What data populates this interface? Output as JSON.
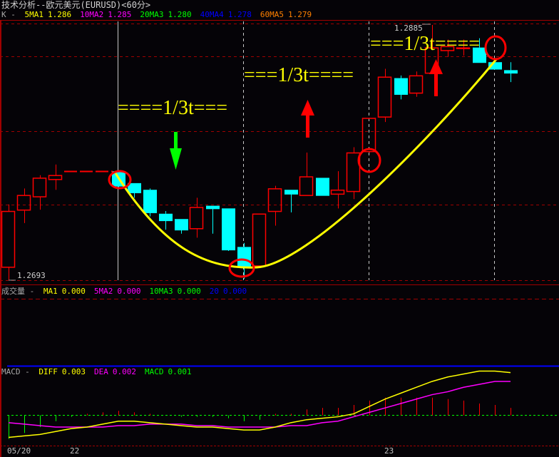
{
  "window": {
    "title": "技术分析--欧元美元(EURUSD)<60分>"
  },
  "price_panel": {
    "label": "K -",
    "indicators": [
      {
        "name": "5MA1",
        "value": "1.286",
        "color": "#ffff00"
      },
      {
        "name": "10MA2",
        "value": "1.285",
        "color": "#ff00ff"
      },
      {
        "name": "20MA3",
        "value": "1.280",
        "color": "#00ff00"
      },
      {
        "name": "40MA4",
        "value": "1.278",
        "color": "#0000ff"
      },
      {
        "name": "60MA5",
        "value": "1.279",
        "color": "#ff8000"
      }
    ],
    "high_label": "1.2885",
    "low_label": "1.2693",
    "annotations": [
      "====1/3t===",
      "===1/3t====",
      "===1/3t===="
    ]
  },
  "volume_panel": {
    "label": "成交量 -",
    "indicators": [
      {
        "name": "MA1",
        "value": "0.000",
        "color": "#ffff00"
      },
      {
        "name": "5MA2",
        "value": "0.000",
        "color": "#ff00ff"
      },
      {
        "name": "10MA3",
        "value": "0.000",
        "color": "#00ff00"
      },
      {
        "name": "20",
        "value": "0.000",
        "color": "#0000ff"
      }
    ]
  },
  "macd_panel": {
    "label": "MACD -",
    "indicators": [
      {
        "name": "DIFF",
        "value": "0.003",
        "color": "#ffff00"
      },
      {
        "name": "DEA",
        "value": "0.002",
        "color": "#ff00ff"
      },
      {
        "name": "MACD",
        "value": "0.001",
        "color": "#00ff00"
      }
    ]
  },
  "date_axis": [
    "05/20",
    "22",
    "23"
  ],
  "colors": {
    "up": "#ff0000",
    "down": "#00ffff",
    "grid": "#a00000",
    "curve": "#ffff00",
    "arrow_down": "#00ff00",
    "arrow_up": "#ff0000"
  },
  "chart_data": {
    "type": "candlestick",
    "price_range": [
      1.2693,
      1.2885
    ],
    "candles": [
      {
        "o": 1.2703,
        "h": 1.275,
        "l": 1.2693,
        "c": 1.2745
      },
      {
        "o": 1.2746,
        "h": 1.2762,
        "l": 1.2736,
        "c": 1.2757
      },
      {
        "o": 1.2756,
        "h": 1.2772,
        "l": 1.2746,
        "c": 1.277
      },
      {
        "o": 1.2769,
        "h": 1.278,
        "l": 1.2761,
        "c": 1.2772
      },
      null,
      null,
      null,
      {
        "o": 1.2775,
        "h": 1.2775,
        "l": 1.2763,
        "c": 1.2764
      },
      {
        "o": 1.2766,
        "h": 1.2766,
        "l": 1.2755,
        "c": 1.2759
      },
      {
        "o": 1.2761,
        "h": 1.2762,
        "l": 1.2741,
        "c": 1.2744
      },
      {
        "o": 1.2743,
        "h": 1.2745,
        "l": 1.2731,
        "c": 1.2738
      },
      {
        "o": 1.2739,
        "h": 1.2739,
        "l": 1.2728,
        "c": 1.2731
      },
      {
        "o": 1.2732,
        "h": 1.2755,
        "l": 1.2725,
        "c": 1.2748
      },
      {
        "o": 1.2749,
        "h": 1.2749,
        "l": 1.2728,
        "c": 1.2747
      },
      {
        "o": 1.2747,
        "h": 1.2747,
        "l": 1.2715,
        "c": 1.2716
      },
      {
        "o": 1.2718,
        "h": 1.2721,
        "l": 1.2694,
        "c": 1.2703
      },
      {
        "o": 1.2704,
        "h": 1.2743,
        "l": 1.2703,
        "c": 1.2743
      },
      {
        "o": 1.2745,
        "h": 1.2764,
        "l": 1.2734,
        "c": 1.2762
      },
      {
        "o": 1.2761,
        "h": 1.2761,
        "l": 1.2744,
        "c": 1.2758
      },
      {
        "o": 1.2757,
        "h": 1.2789,
        "l": 1.2757,
        "c": 1.2771
      },
      {
        "o": 1.277,
        "h": 1.277,
        "l": 1.2757,
        "c": 1.2757
      },
      {
        "o": 1.2758,
        "h": 1.2775,
        "l": 1.2747,
        "c": 1.2761
      },
      {
        "o": 1.276,
        "h": 1.2793,
        "l": 1.2754,
        "c": 1.2789
      },
      {
        "o": 1.279,
        "h": 1.2815,
        "l": 1.2789,
        "c": 1.2815
      },
      {
        "o": 1.2816,
        "h": 1.2852,
        "l": 1.2812,
        "c": 1.2846
      },
      {
        "o": 1.2845,
        "h": 1.2847,
        "l": 1.2829,
        "c": 1.2833
      },
      {
        "o": 1.2834,
        "h": 1.285,
        "l": 1.2831,
        "c": 1.2847
      },
      {
        "o": 1.2849,
        "h": 1.2885,
        "l": 1.2849,
        "c": 1.2868
      },
      {
        "o": 1.2866,
        "h": 1.2874,
        "l": 1.2861,
        "c": 1.2869
      },
      {
        "o": 1.2868,
        "h": 1.2874,
        "l": 1.2862,
        "c": 1.2868
      },
      {
        "o": 1.2868,
        "h": 1.2875,
        "l": 1.2857,
        "c": 1.2857
      },
      {
        "o": 1.2857,
        "h": 1.2857,
        "l": 1.2852,
        "c": 1.2852
      },
      {
        "o": 1.2851,
        "h": 1.2857,
        "l": 1.2842,
        "c": 1.2849
      }
    ],
    "macd": {
      "diff": [
        -0.0015,
        -0.0014,
        -0.0013,
        -0.0011,
        -0.0009,
        -0.0008,
        -0.0006,
        -0.0004,
        -0.0004,
        -0.0005,
        -0.0006,
        -0.0007,
        -0.0008,
        -0.0008,
        -0.0009,
        -0.001,
        -0.001,
        -0.0008,
        -0.0005,
        -0.0003,
        -0.0002,
        -0.0001,
        0.0001,
        0.0006,
        0.0011,
        0.0015,
        0.0019,
        0.0023,
        0.0026,
        0.0028,
        0.003,
        0.003,
        0.0029
      ],
      "dea": [
        -0.0005,
        -0.0006,
        -0.0007,
        -0.0008,
        -0.0008,
        -0.0008,
        -0.0008,
        -0.0007,
        -0.0007,
        -0.0006,
        -0.0006,
        -0.0006,
        -0.0007,
        -0.0007,
        -0.0008,
        -0.0008,
        -0.0008,
        -0.0008,
        -0.0007,
        -0.0007,
        -0.0005,
        -0.0004,
        -0.0001,
        0.0002,
        0.0005,
        0.0008,
        0.0011,
        0.0014,
        0.0016,
        0.0019,
        0.0021,
        0.0023,
        0.0023
      ],
      "hist": [
        -0.0016,
        -0.0012,
        -0.0008,
        -0.0004,
        -0.0001,
        0.0001,
        0.0002,
        0.0003,
        0.0002,
        0.0001,
        0.0,
        -0.0001,
        -0.0001,
        -0.0001,
        -0.0002,
        -0.0004,
        -0.0003,
        0.0001,
        0.0001,
        0.0004,
        0.0005,
        0.0005,
        0.0007,
        0.001,
        0.0012,
        0.0012,
        0.0012,
        0.0012,
        0.0011,
        0.001,
        0.0008,
        0.0007,
        0.0005
      ]
    }
  }
}
